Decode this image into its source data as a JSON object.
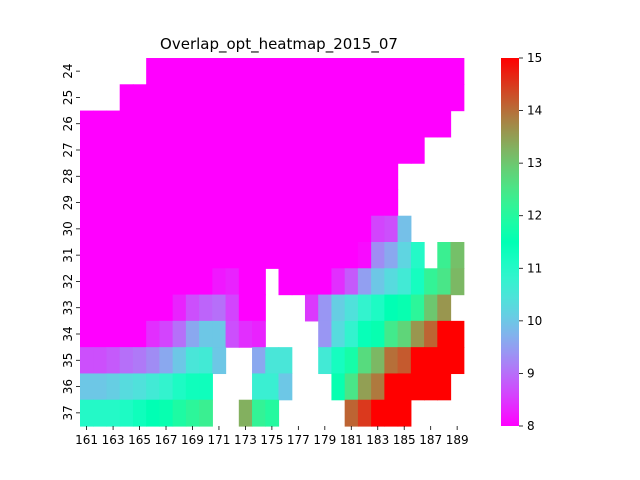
{
  "chart_data": {
    "type": "heatmap",
    "title": "Overlap_opt_heatmap_2015_07",
    "xlabel": "",
    "ylabel": "",
    "x_values": [
      161,
      162,
      163,
      164,
      165,
      166,
      167,
      168,
      169,
      170,
      171,
      172,
      173,
      174,
      175,
      176,
      177,
      178,
      179,
      180,
      181,
      182,
      183,
      184,
      185,
      186,
      187,
      188,
      189,
      190
    ],
    "y_values": [
      24,
      25,
      26,
      27,
      28,
      29,
      30,
      31,
      32,
      33,
      34,
      35,
      36,
      37
    ],
    "x_tick_labels": [
      "161",
      "163",
      "165",
      "167",
      "169",
      "171",
      "173",
      "175",
      "177",
      "179",
      "181",
      "183",
      "185",
      "187",
      "189"
    ],
    "y_tick_labels": [
      "24",
      "25",
      "26",
      "27",
      "28",
      "29",
      "30",
      "31",
      "32",
      "33",
      "34",
      "35",
      "36",
      "37"
    ],
    "colorbar": {
      "min": 8,
      "max": 15,
      "ticks": [
        "8",
        "9",
        "10",
        "11",
        "12",
        "13",
        "14",
        "15"
      ],
      "colormap": "rainbow"
    },
    "values": [
      [
        null,
        null,
        null,
        null,
        null,
        8,
        8,
        8,
        8,
        8,
        8,
        8,
        8,
        8,
        8,
        8,
        8,
        8,
        8,
        8,
        8,
        8,
        8,
        8,
        8,
        8,
        8,
        8,
        8,
        null
      ],
      [
        null,
        null,
        null,
        8,
        8,
        8,
        8,
        8,
        8,
        8,
        8,
        8,
        8,
        8,
        8,
        8,
        8,
        8,
        8,
        8,
        8,
        8,
        8,
        8,
        8,
        8,
        8,
        8,
        8,
        null
      ],
      [
        8,
        8,
        8,
        8,
        8,
        8,
        8,
        8,
        8,
        8,
        8,
        8,
        8,
        8,
        8,
        8,
        8,
        8,
        8,
        8,
        8,
        8,
        8,
        8,
        8,
        8,
        8,
        8,
        null,
        null
      ],
      [
        8,
        8,
        8,
        8,
        8,
        8,
        8,
        8,
        8,
        8,
        8,
        8,
        8,
        8,
        8,
        8,
        8,
        8,
        8,
        8,
        8,
        8,
        8,
        8,
        8,
        8,
        null,
        null,
        null,
        null
      ],
      [
        8,
        8,
        8,
        8,
        8,
        8,
        8,
        8,
        8,
        8,
        8,
        8,
        8,
        8,
        8,
        8,
        8,
        8,
        8,
        8,
        8,
        8,
        8,
        8,
        null,
        null,
        null,
        null,
        null,
        null
      ],
      [
        8,
        8,
        8,
        8,
        8,
        8,
        8,
        8,
        8,
        8,
        8,
        8,
        8,
        8,
        8,
        8,
        8,
        8,
        8,
        8,
        8,
        8,
        8,
        8,
        null,
        null,
        null,
        null,
        null,
        null
      ],
      [
        8,
        8,
        8,
        8,
        8,
        8,
        8,
        8,
        8,
        8,
        8,
        8,
        8,
        8,
        8,
        8,
        8,
        8,
        8,
        8,
        8,
        8,
        8.6,
        8.7,
        9.9,
        null,
        null,
        null,
        null,
        null
      ],
      [
        8,
        8,
        8,
        8,
        8,
        8,
        8,
        8,
        8,
        8,
        8,
        8,
        8,
        8,
        8,
        8,
        8,
        8,
        8,
        8,
        8,
        8.1,
        9.3,
        9.6,
        10.2,
        11,
        null,
        12.3,
        13.1,
        null
      ],
      [
        8,
        8,
        8,
        8,
        8,
        8,
        8,
        8,
        8,
        8,
        8.2,
        8.3,
        8,
        8,
        null,
        8,
        8,
        8,
        8,
        8.4,
        8.8,
        9.5,
        10,
        10.3,
        10.6,
        11.2,
        12.2,
        12.5,
        13.2,
        null
      ],
      [
        8,
        8,
        8,
        8,
        8,
        8,
        8,
        8.3,
        8.7,
        8.9,
        9,
        8.6,
        8,
        8,
        null,
        null,
        null,
        8.5,
        9.4,
        10.1,
        10.4,
        10.8,
        11.1,
        11.5,
        11.6,
        12.1,
        13,
        13.6,
        null,
        null
      ],
      [
        8,
        8,
        8,
        8,
        8,
        8.4,
        8.6,
        9,
        9.6,
        10,
        10,
        8.7,
        8.4,
        8.3,
        null,
        null,
        null,
        null,
        9.4,
        10.3,
        10.8,
        11.4,
        11.6,
        12.4,
        12.8,
        13.6,
        14.1,
        15,
        15,
        null
      ],
      [
        8.7,
        8.7,
        8.8,
        9,
        9.1,
        9.3,
        9.6,
        10,
        10.5,
        10.6,
        10,
        null,
        null,
        9.6,
        10.5,
        10.5,
        null,
        null,
        10.6,
        11.2,
        11.8,
        12.7,
        13.2,
        14,
        14.2,
        15,
        15,
        15,
        15,
        null
      ],
      [
        10,
        10,
        10.1,
        10.3,
        10.4,
        10.6,
        10.8,
        11.1,
        11.3,
        11.3,
        null,
        null,
        null,
        10.7,
        10.7,
        10,
        null,
        null,
        null,
        11.6,
        12.5,
        13.5,
        13.9,
        15,
        15,
        15,
        15,
        15,
        null,
        null
      ],
      [
        11,
        11,
        11,
        11.1,
        11.3,
        11.5,
        11.6,
        11.9,
        12.1,
        12.3,
        null,
        null,
        13.3,
        12.2,
        12,
        null,
        null,
        null,
        null,
        null,
        14.1,
        14.5,
        15,
        15,
        15,
        null,
        null,
        null,
        null,
        null
      ]
    ]
  }
}
